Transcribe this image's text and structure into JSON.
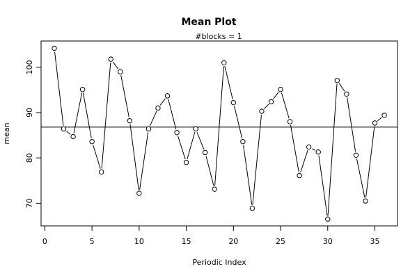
{
  "chart_data": {
    "type": "line",
    "title": "Mean Plot",
    "subtitle": "#blocks =  1",
    "xlabel": "Periodic Index",
    "ylabel": "mean",
    "xlim": [
      -0.4,
      37.4
    ],
    "ylim": [
      65.0,
      105.8
    ],
    "x_ticks": [
      0,
      5,
      10,
      15,
      20,
      25,
      30,
      35
    ],
    "y_ticks": [
      70,
      80,
      90,
      100
    ],
    "grid": false,
    "legend": "none",
    "reference_line": 86.8,
    "line_color": "#000000",
    "point_style": "open-circle",
    "x": [
      1,
      2,
      3,
      4,
      5,
      6,
      7,
      8,
      9,
      10,
      11,
      12,
      13,
      14,
      15,
      16,
      17,
      18,
      19,
      20,
      21,
      22,
      23,
      24,
      25,
      26,
      27,
      28,
      29,
      30,
      31,
      32,
      33,
      34,
      35,
      36
    ],
    "y": [
      104.2,
      86.4,
      84.7,
      95.1,
      83.6,
      76.9,
      101.8,
      99.0,
      88.2,
      72.2,
      86.4,
      91.0,
      93.7,
      85.6,
      79.0,
      86.4,
      81.2,
      73.1,
      101.0,
      92.2,
      83.6,
      68.9,
      90.3,
      92.4,
      95.1,
      88.0,
      76.1,
      82.4,
      81.3,
      66.5,
      97.1,
      94.1,
      80.6,
      70.5,
      87.7,
      89.4
    ]
  }
}
